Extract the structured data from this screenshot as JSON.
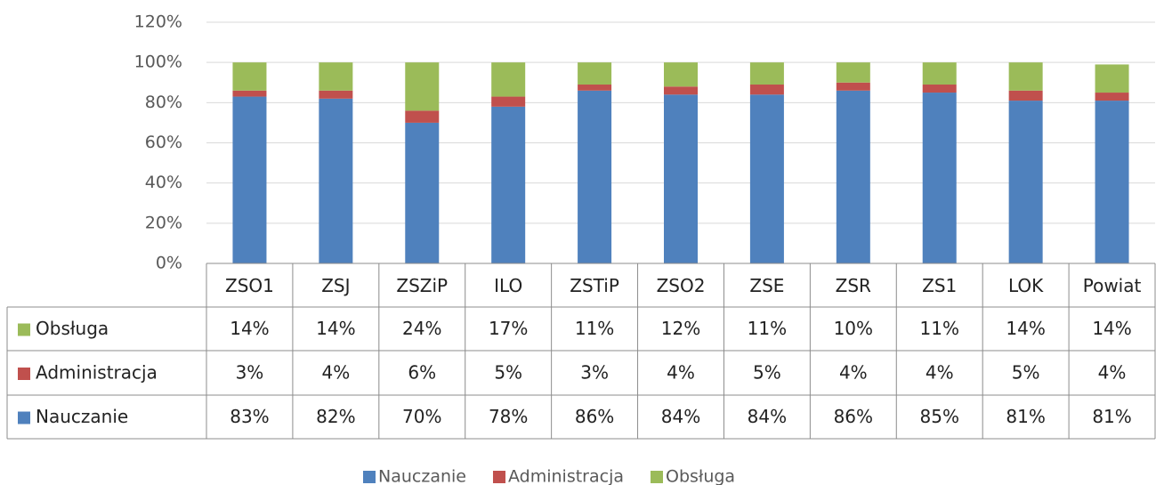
{
  "chart_data": {
    "type": "stacked_bar",
    "categories": [
      "ZSO1",
      "ZSJ",
      "ZSZiP",
      "ILO",
      "ZSTiP",
      "ZSO2",
      "ZSE",
      "ZSR",
      "ZS1",
      "LOK",
      "Powiat"
    ],
    "series": [
      {
        "name": "Nauczanie",
        "color": "#4f81bd",
        "values": [
          83,
          82,
          70,
          78,
          86,
          84,
          84,
          86,
          85,
          81,
          81
        ],
        "value_labels": [
          "83%",
          "82%",
          "70%",
          "78%",
          "86%",
          "84%",
          "84%",
          "86%",
          "85%",
          "81%",
          "81%"
        ]
      },
      {
        "name": "Administracja",
        "color": "#c0504d",
        "values": [
          3,
          4,
          6,
          5,
          3,
          4,
          5,
          4,
          4,
          5,
          4
        ],
        "value_labels": [
          "3%",
          "4%",
          "6%",
          "5%",
          "3%",
          "4%",
          "5%",
          "4%",
          "4%",
          "5%",
          "4%"
        ]
      },
      {
        "name": "Obsługa",
        "color": "#9bbb59",
        "values": [
          14,
          14,
          24,
          17,
          11,
          12,
          11,
          10,
          11,
          14,
          14
        ],
        "value_labels": [
          "14%",
          "14%",
          "24%",
          "17%",
          "11%",
          "12%",
          "11%",
          "10%",
          "11%",
          "14%",
          "14%"
        ]
      }
    ],
    "ylim": [
      0,
      120
    ],
    "yticks": [
      {
        "value": 0,
        "label": "0%"
      },
      {
        "value": 20,
        "label": "20%"
      },
      {
        "value": 40,
        "label": "40%"
      },
      {
        "value": 60,
        "label": "60%"
      },
      {
        "value": 80,
        "label": "80%"
      },
      {
        "value": 100,
        "label": "100%"
      },
      {
        "value": 120,
        "label": "120%"
      }
    ],
    "grid": true,
    "legend": "bottom",
    "data_table": true
  }
}
